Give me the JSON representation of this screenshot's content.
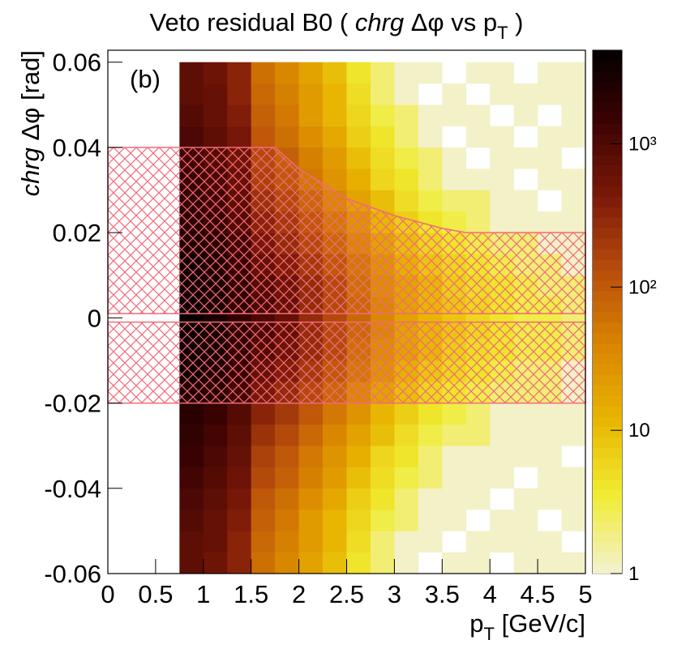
{
  "chart_data": {
    "type": "heatmap",
    "title_1": "Veto residual B0 (",
    "title_italic": "chrg",
    "title_2": "Δφ vs p",
    "title_sub": "T",
    "title_3": ")",
    "ylabel_italic": "chrg",
    "ylabel": "Δφ [rad]",
    "xlabel": "p",
    "xlabel_sub": "T",
    "xlabel_unit": "[GeV/c]",
    "annotation": "(b)",
    "xlim": [
      0,
      5
    ],
    "ylim": [
      -0.06,
      0.0628
    ],
    "xticks": [
      0,
      0.5,
      1,
      1.5,
      2,
      2.5,
      3,
      3.5,
      4,
      4.5,
      5
    ],
    "yticks": [
      -0.06,
      -0.04,
      -0.02,
      0,
      0.02,
      0.04,
      0.06
    ],
    "zlim": [
      1,
      4500
    ],
    "log_z": true,
    "zticks": [
      1,
      10,
      {
        "value": 100,
        "label": "10²"
      },
      {
        "value": 1000,
        "label": "10³"
      }
    ],
    "palette": [
      "#f3f1c8",
      "#f0ec30",
      "#e8b400",
      "#d98400",
      "#b84c0c",
      "#7a1808",
      "#3a0202",
      "#000000"
    ],
    "xbins": [
      0.75,
      1,
      1.25,
      1.5,
      1.75,
      2,
      2.25,
      2.5,
      2.75,
      3,
      3.25,
      3.5,
      3.75,
      4,
      4.25,
      4.5,
      4.75,
      5
    ],
    "ybins": [
      -0.06,
      -0.055,
      -0.05,
      -0.045,
      -0.04,
      -0.035,
      -0.03,
      -0.025,
      -0.02,
      -0.015,
      -0.01,
      -0.005,
      0,
      0.005,
      0.01,
      0.015,
      0.02,
      0.025,
      0.03,
      0.035,
      0.04,
      0.045,
      0.05,
      0.055,
      0.06
    ],
    "z": [
      [
        720,
        540,
        320,
        60,
        36,
        18,
        9,
        4,
        2,
        1,
        null,
        1,
        1,
        null,
        1,
        1,
        1
      ],
      [
        800,
        600,
        360,
        70,
        42,
        21,
        11,
        5,
        2,
        1,
        1,
        null,
        1,
        1,
        1,
        1,
        null
      ],
      [
        880,
        660,
        400,
        80,
        48,
        24,
        12,
        6,
        3,
        2,
        1,
        1,
        null,
        1,
        1,
        null,
        1
      ],
      [
        1000,
        750,
        450,
        100,
        60,
        30,
        15,
        7,
        4,
        2,
        1,
        1,
        1,
        null,
        1,
        1,
        1
      ],
      [
        1240,
        930,
        560,
        140,
        84,
        42,
        21,
        10,
        5,
        3,
        2,
        1,
        1,
        1,
        null,
        1,
        1
      ],
      [
        1440,
        1080,
        650,
        180,
        108,
        54,
        27,
        13,
        6,
        4,
        2,
        1,
        1,
        1,
        1,
        1,
        null
      ],
      [
        1760,
        1320,
        790,
        250,
        150,
        75,
        38,
        18,
        9,
        5,
        3,
        2,
        2,
        1,
        1,
        1,
        1
      ],
      [
        2120,
        1590,
        950,
        350,
        210,
        105,
        53,
        25,
        12,
        7,
        4,
        3,
        2,
        1,
        1,
        1,
        1
      ],
      [
        2640,
        1980,
        1190,
        500,
        300,
        150,
        75,
        35,
        18,
        10,
        6,
        4,
        3,
        2,
        2,
        2,
        1
      ],
      [
        3240,
        2430,
        1460,
        700,
        420,
        210,
        105,
        49,
        25,
        14,
        8,
        6,
        4,
        3,
        2,
        2,
        1
      ],
      [
        3760,
        2820,
        1690,
        900,
        540,
        270,
        135,
        63,
        32,
        18,
        11,
        7,
        5,
        4,
        3,
        3,
        2
      ],
      [
        4000,
        3000,
        1800,
        1000,
        600,
        300,
        150,
        70,
        35,
        20,
        12,
        8,
        6,
        4,
        3,
        3,
        2
      ],
      [
        4000,
        3000,
        1800,
        1000,
        600,
        300,
        150,
        70,
        35,
        20,
        12,
        8,
        6,
        4,
        3,
        3,
        2
      ],
      [
        3760,
        2820,
        1690,
        900,
        540,
        270,
        135,
        63,
        32,
        18,
        11,
        7,
        5,
        4,
        3,
        2,
        2
      ],
      [
        3240,
        2430,
        1460,
        700,
        420,
        210,
        105,
        49,
        25,
        14,
        8,
        6,
        4,
        3,
        2,
        2,
        1
      ],
      [
        2640,
        1980,
        1190,
        500,
        300,
        150,
        75,
        35,
        18,
        10,
        6,
        4,
        3,
        2,
        2,
        1,
        1
      ],
      [
        2120,
        1590,
        950,
        350,
        210,
        105,
        53,
        25,
        12,
        7,
        4,
        3,
        2,
        1,
        1,
        1,
        1
      ],
      [
        1760,
        1320,
        790,
        250,
        150,
        75,
        38,
        18,
        9,
        5,
        3,
        2,
        2,
        1,
        1,
        null,
        1
      ],
      [
        1440,
        1080,
        650,
        180,
        108,
        54,
        27,
        13,
        6,
        4,
        2,
        1,
        1,
        1,
        null,
        1,
        1
      ],
      [
        1240,
        930,
        560,
        140,
        84,
        42,
        21,
        10,
        5,
        3,
        2,
        1,
        null,
        1,
        1,
        1,
        null
      ],
      [
        1000,
        750,
        450,
        100,
        60,
        30,
        15,
        7,
        4,
        2,
        1,
        null,
        1,
        1,
        null,
        1,
        1
      ],
      [
        880,
        660,
        400,
        80,
        48,
        24,
        12,
        6,
        3,
        2,
        1,
        1,
        1,
        null,
        1,
        null,
        1
      ],
      [
        800,
        600,
        360,
        70,
        42,
        21,
        11,
        5,
        2,
        1,
        null,
        1,
        null,
        1,
        1,
        1,
        1
      ],
      [
        720,
        540,
        320,
        60,
        36,
        18,
        9,
        4,
        2,
        1,
        1,
        null,
        1,
        1,
        null,
        1,
        1
      ]
    ],
    "regions": [
      {
        "x": [
          0,
          0,
          1.75,
          2.0,
          2.5,
          3.0,
          3.5,
          3.75,
          5,
          5
        ],
        "y": [
          0.001,
          0.04,
          0.04,
          0.035,
          0.028,
          0.024,
          0.021,
          0.02,
          0.02,
          0.001
        ]
      },
      {
        "x": [
          0,
          0,
          5,
          5
        ],
        "y": [
          -0.001,
          -0.02,
          -0.02,
          -0.001
        ]
      }
    ],
    "region_color": "#f26a78"
  }
}
